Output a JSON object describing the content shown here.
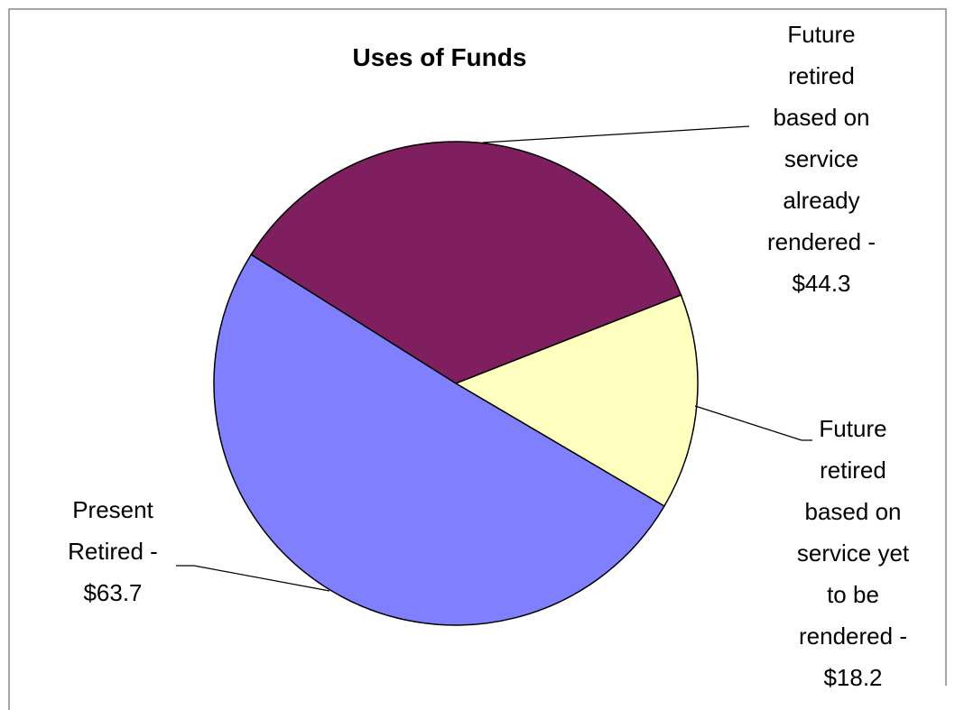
{
  "chart_data": {
    "type": "pie",
    "title": "Uses of Funds",
    "categories": [
      "Future retired based on service already rendered -",
      "Future retired based on service yet to be rendered -",
      "Present Retired -"
    ],
    "values": [
      44.3,
      18.2,
      63.7
    ],
    "value_labels": [
      "$44.3",
      "$18.2",
      "$63.7"
    ],
    "colors": [
      "#7f1f5f",
      "#ffffc0",
      "#8080ff"
    ]
  }
}
